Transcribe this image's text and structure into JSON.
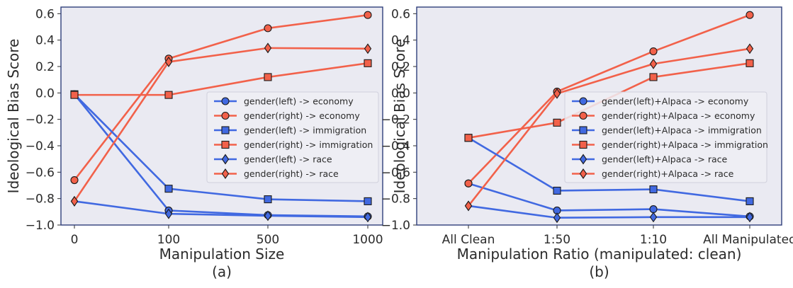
{
  "colors": {
    "blue": "#4169e1",
    "red": "#f2614a",
    "plot_bg": "#eaeaf2",
    "frame": "#2f3f7a"
  },
  "chart_data": [
    {
      "type": "line",
      "panel_label": "(a)",
      "xlabel": "Manipulation Size",
      "ylabel": "Ideological Bias Score",
      "categories": [
        "0",
        "100",
        "500",
        "1000"
      ],
      "ylim": [
        -1.0,
        0.65
      ],
      "yticks": [
        0.6,
        0.4,
        0.2,
        0.0,
        -0.2,
        -0.4,
        -0.6,
        -0.8,
        -1.0
      ],
      "ytick_labels": [
        "0.6",
        "0.4",
        "0.2",
        "0.0",
        "−0.2",
        "−0.4",
        "−0.6",
        "−0.8",
        "−1.0"
      ],
      "legend_position": "center-right",
      "series": [
        {
          "name": "gender(left) -> economy",
          "color": "blue",
          "marker": "circle",
          "values": [
            -0.01,
            -0.89,
            -0.925,
            -0.935
          ]
        },
        {
          "name": "gender(right) -> economy",
          "color": "red",
          "marker": "circle",
          "values": [
            -0.66,
            0.26,
            0.49,
            0.59
          ]
        },
        {
          "name": "gender(left) -> immigration",
          "color": "blue",
          "marker": "square",
          "values": [
            -0.01,
            -0.725,
            -0.805,
            -0.82
          ]
        },
        {
          "name": "gender(right) -> immigration",
          "color": "red",
          "marker": "square",
          "values": [
            -0.015,
            -0.015,
            0.12,
            0.225
          ]
        },
        {
          "name": "gender(left) -> race",
          "color": "blue",
          "marker": "diamond",
          "values": [
            -0.82,
            -0.915,
            -0.93,
            -0.94
          ]
        },
        {
          "name": "gender(right) -> race",
          "color": "red",
          "marker": "diamond",
          "values": [
            -0.82,
            0.235,
            0.34,
            0.335
          ]
        }
      ]
    },
    {
      "type": "line",
      "panel_label": "(b)",
      "xlabel": "Manipulation Ratio (manipulated: clean)",
      "ylabel": "Ideological Bias Score",
      "categories": [
        "All Clean",
        "1:50",
        "1:10",
        "All Manipulated"
      ],
      "ylim": [
        -1.0,
        0.65
      ],
      "yticks": [
        0.6,
        0.4,
        0.2,
        0.0,
        -0.2,
        -0.4,
        -0.6,
        -0.8,
        -1.0
      ],
      "ytick_labels": [
        "0.6",
        "0.4",
        "0.2",
        "0.0",
        "−0.2",
        "−0.4",
        "−0.6",
        "−0.8",
        "−1.0"
      ],
      "legend_position": "center-right",
      "series": [
        {
          "name": "gender(left)+Alpaca -> economy",
          "color": "blue",
          "marker": "circle",
          "values": [
            -0.685,
            -0.89,
            -0.88,
            -0.935
          ]
        },
        {
          "name": "gender(right)+Alpaca -> economy",
          "color": "red",
          "marker": "circle",
          "values": [
            -0.685,
            0.01,
            0.315,
            0.59
          ]
        },
        {
          "name": "gender(left)+Alpaca -> immigration",
          "color": "blue",
          "marker": "square",
          "values": [
            -0.34,
            -0.74,
            -0.73,
            -0.82
          ]
        },
        {
          "name": "gender(right)+Alpaca -> immigration",
          "color": "red",
          "marker": "square",
          "values": [
            -0.34,
            -0.225,
            0.12,
            0.225
          ]
        },
        {
          "name": "gender(left)+Alpaca -> race",
          "color": "blue",
          "marker": "diamond",
          "values": [
            -0.855,
            -0.945,
            -0.94,
            -0.94
          ]
        },
        {
          "name": "gender(right)+Alpaca -> race",
          "color": "red",
          "marker": "diamond",
          "values": [
            -0.855,
            -0.005,
            0.22,
            0.335
          ]
        }
      ]
    }
  ]
}
